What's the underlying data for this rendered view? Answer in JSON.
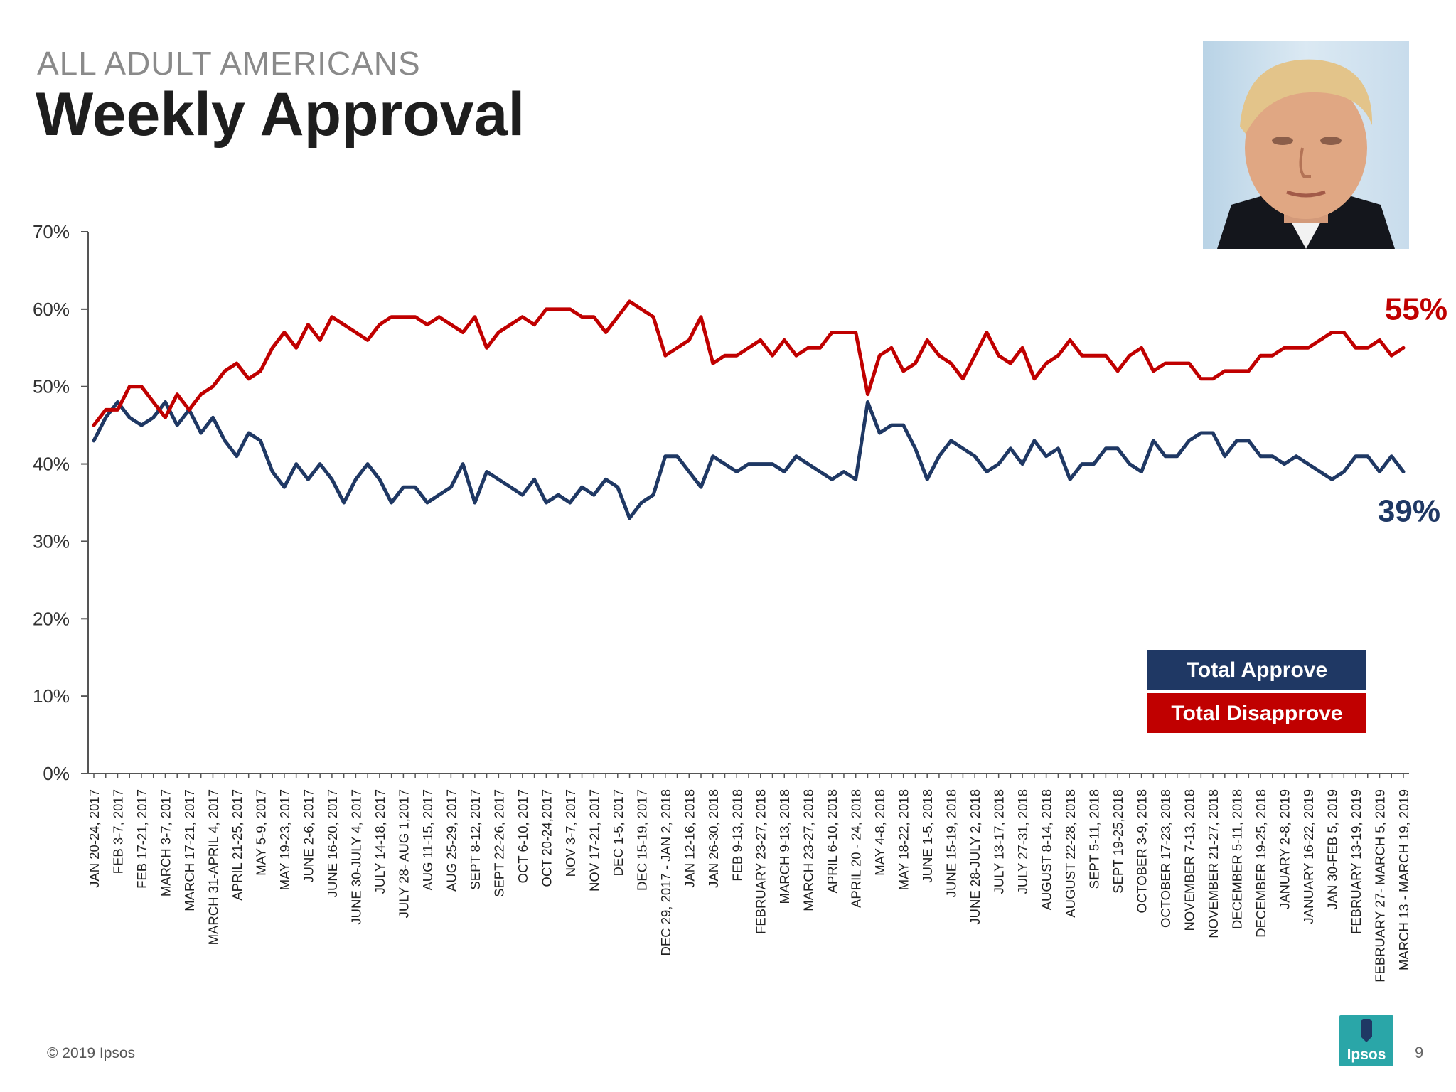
{
  "header": {
    "subtitle": "ALL ADULT AMERICANS",
    "title": "Weekly Approval"
  },
  "footer": {
    "copyright": "© 2019 Ipsos",
    "logo_text": "Ipsos",
    "page_number": "9"
  },
  "colors": {
    "approve": "#1f3864",
    "disapprove": "#c00000",
    "axis": "#555555",
    "text": "#1e1e1e"
  },
  "chart_data": {
    "type": "line",
    "title": "Weekly Approval",
    "xlabel": "",
    "ylabel": "",
    "ylim": [
      0,
      70
    ],
    "y_ticks": [
      0,
      10,
      20,
      30,
      40,
      50,
      60,
      70
    ],
    "y_tick_labels": [
      "0%",
      "10%",
      "20%",
      "30%",
      "40%",
      "50%",
      "60%",
      "70%"
    ],
    "grid": false,
    "legend_position": "bottom-right",
    "x_tick_labels": [
      "JAN 20-24, 2017",
      "FEB 3-7, 2017",
      "FEB 17-21, 2017",
      "MARCH 3-7, 2017",
      "MARCH 17-21, 2017",
      "MARCH 31-APRIL 4, 2017",
      "APRIL 21-25, 2017",
      "MAY 5-9, 2017",
      "MAY 19-23, 2017",
      "JUNE 2-6, 2017",
      "JUNE 16-20, 2017",
      "JUNE 30-JULY 4, 2017",
      "JULY 14-18, 2017",
      "JULY 28- AUG 1,2017",
      "AUG 11-15, 2017",
      "AUG 25-29, 2017",
      "SEPT 8-12, 2017",
      "SEPT 22-26, 2017",
      "OCT 6-10, 2017",
      "OCT 20-24,2017",
      "NOV 3-7, 2017",
      "NOV 17-21, 2017",
      "DEC 1-5, 2017",
      "DEC 15-19, 2017",
      "DEC 29, 2017 - JAN 2, 2018",
      "JAN 12-16, 2018",
      "JAN 26-30, 2018",
      "FEB 9-13, 2018",
      "FEBRUARY 23-27, 2018",
      "MARCH 9-13, 2018",
      "MARCH 23-27, 2018",
      "APRIL 6-10, 2018",
      "APRIL 20 - 24, 2018",
      "MAY 4-8, 2018",
      "MAY 18-22, 2018",
      "JUNE 1-5, 2018",
      "JUNE 15-19, 2018",
      "JUNE 28-JULY 2, 2018",
      "JULY 13-17, 2018",
      "JULY 27-31, 2018",
      "AUGUST 8-14, 2018",
      "AUGUST 22-28, 2018",
      "SEPT 5-11, 2018",
      "SEPT 19-25,2018",
      "OCTOBER 3-9, 2018",
      "OCTOBER 17-23, 2018",
      "NOVEMBER 7-13, 2018",
      "NOVEMBER 21-27, 2018",
      "DECEMBER 5-11, 2018",
      "DECEMBER 19-25, 2018",
      "JANUARY 2-8, 2019",
      "JANUARY 16-22, 2019",
      "JAN 30-FEB 5, 2019",
      "FEBRUARY 13-19, 2019",
      "FEBRUARY 27- MARCH 5, 2019",
      "MARCH 13 - MARCH 19, 2019"
    ],
    "series": [
      {
        "name": "Total Approve",
        "end_label": "39%",
        "values": [
          43,
          46,
          48,
          46,
          45,
          46,
          48,
          45,
          47,
          44,
          46,
          43,
          41,
          44,
          43,
          39,
          37,
          40,
          38,
          40,
          38,
          35,
          38,
          40,
          38,
          35,
          37,
          37,
          35,
          36,
          37,
          40,
          35,
          39,
          38,
          37,
          36,
          38,
          35,
          36,
          35,
          37,
          36,
          38,
          37,
          33,
          35,
          36,
          41,
          41,
          39,
          37,
          41,
          40,
          39,
          40,
          40,
          40,
          39,
          41,
          40,
          39,
          38,
          39,
          38,
          48,
          44,
          45,
          45,
          42,
          38,
          41,
          43,
          42,
          41,
          39,
          40,
          42,
          40,
          43,
          41,
          42,
          38,
          40,
          40,
          42,
          42,
          40,
          39,
          43,
          41,
          41,
          43,
          44,
          44,
          41,
          43,
          43,
          41,
          41,
          40,
          41,
          40,
          39,
          38,
          39,
          41,
          41,
          39,
          41,
          39
        ]
      },
      {
        "name": "Total Disapprove",
        "end_label": "55%",
        "values": [
          45,
          47,
          47,
          50,
          50,
          48,
          46,
          49,
          47,
          49,
          50,
          52,
          53,
          51,
          52,
          55,
          57,
          55,
          58,
          56,
          59,
          58,
          57,
          56,
          58,
          59,
          59,
          59,
          58,
          59,
          58,
          57,
          59,
          55,
          57,
          58,
          59,
          58,
          60,
          60,
          60,
          59,
          59,
          57,
          59,
          61,
          60,
          59,
          54,
          55,
          56,
          59,
          53,
          54,
          54,
          55,
          56,
          54,
          56,
          54,
          55,
          55,
          57,
          57,
          57,
          49,
          54,
          55,
          52,
          53,
          56,
          54,
          53,
          51,
          54,
          57,
          54,
          53,
          55,
          51,
          53,
          54,
          56,
          54,
          54,
          54,
          52,
          54,
          55,
          52,
          53,
          53,
          53,
          51,
          51,
          52,
          52,
          52,
          54,
          54,
          55,
          55,
          55,
          56,
          57,
          57,
          55,
          55,
          56,
          54,
          55
        ]
      }
    ]
  }
}
